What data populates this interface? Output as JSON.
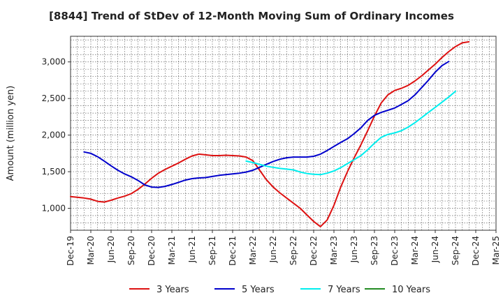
{
  "chart_data": {
    "type": "line",
    "title": "[8844]  Trend of StDev of 12-Month Moving Sum of Ordinary Incomes",
    "xlabel": "",
    "ylabel": "Amount (million yen)",
    "ylim": [
      700,
      3350
    ],
    "yticks": [
      1000,
      1500,
      2000,
      2500,
      3000
    ],
    "ytick_labels": [
      "1,000",
      "1,500",
      "2,000",
      "2,500",
      "3,000"
    ],
    "xlim": [
      0,
      63
    ],
    "xticks": [
      0,
      3,
      6,
      9,
      12,
      15,
      18,
      21,
      24,
      27,
      30,
      33,
      36,
      39,
      42,
      45,
      48,
      51,
      54,
      57,
      60,
      63
    ],
    "xtick_labels": [
      "Dec-19",
      "Mar-20",
      "Jun-20",
      "Sep-20",
      "Dec-20",
      "Mar-21",
      "Jun-21",
      "Sep-21",
      "Dec-21",
      "Mar-22",
      "Jun-22",
      "Sep-22",
      "Dec-22",
      "Mar-23",
      "Jun-23",
      "Sep-23",
      "Dec-23",
      "Mar-24",
      "Jun-24",
      "Sep-24",
      "Dec-24",
      "Mar-25"
    ],
    "grid": true,
    "legend_position": "bottom",
    "series": [
      {
        "name": "3 Years",
        "color": "#dd1111",
        "x_start": 0,
        "values": [
          1160,
          1150,
          1140,
          1125,
          1095,
          1085,
          1110,
          1140,
          1165,
          1200,
          1260,
          1330,
          1410,
          1480,
          1530,
          1575,
          1620,
          1670,
          1715,
          1740,
          1730,
          1720,
          1720,
          1725,
          1720,
          1715,
          1700,
          1650,
          1520,
          1390,
          1290,
          1210,
          1140,
          1070,
          1000,
          910,
          820,
          750,
          840,
          1040,
          1290,
          1500,
          1690,
          1870,
          2060,
          2260,
          2440,
          2550,
          2610,
          2640,
          2680,
          2740,
          2810,
          2890,
          2970,
          3060,
          3140,
          3210,
          3260,
          3275
        ]
      },
      {
        "name": "5 Years",
        "color": "#0000cc",
        "x_start": 2,
        "values": [
          1770,
          1750,
          1705,
          1645,
          1580,
          1520,
          1470,
          1430,
          1380,
          1320,
          1290,
          1285,
          1300,
          1325,
          1355,
          1385,
          1405,
          1415,
          1420,
          1435,
          1450,
          1460,
          1470,
          1480,
          1495,
          1520,
          1560,
          1600,
          1640,
          1670,
          1690,
          1700,
          1700,
          1700,
          1710,
          1740,
          1790,
          1845,
          1900,
          1950,
          2020,
          2100,
          2200,
          2270,
          2310,
          2340,
          2370,
          2420,
          2470,
          2550,
          2650,
          2750,
          2860,
          2950,
          3005
        ]
      },
      {
        "name": "7 Years",
        "color": "#00eeee",
        "x_start": 26,
        "values": [
          1645,
          1625,
          1600,
          1575,
          1560,
          1545,
          1535,
          1525,
          1495,
          1475,
          1465,
          1460,
          1480,
          1510,
          1555,
          1610,
          1665,
          1720,
          1800,
          1890,
          1970,
          2010,
          2030,
          2060,
          2110,
          2170,
          2240,
          2310,
          2380,
          2450,
          2520,
          2600
        ]
      },
      {
        "name": "10 Years",
        "color": "#228b22",
        "x_start": 0,
        "values": []
      }
    ]
  }
}
